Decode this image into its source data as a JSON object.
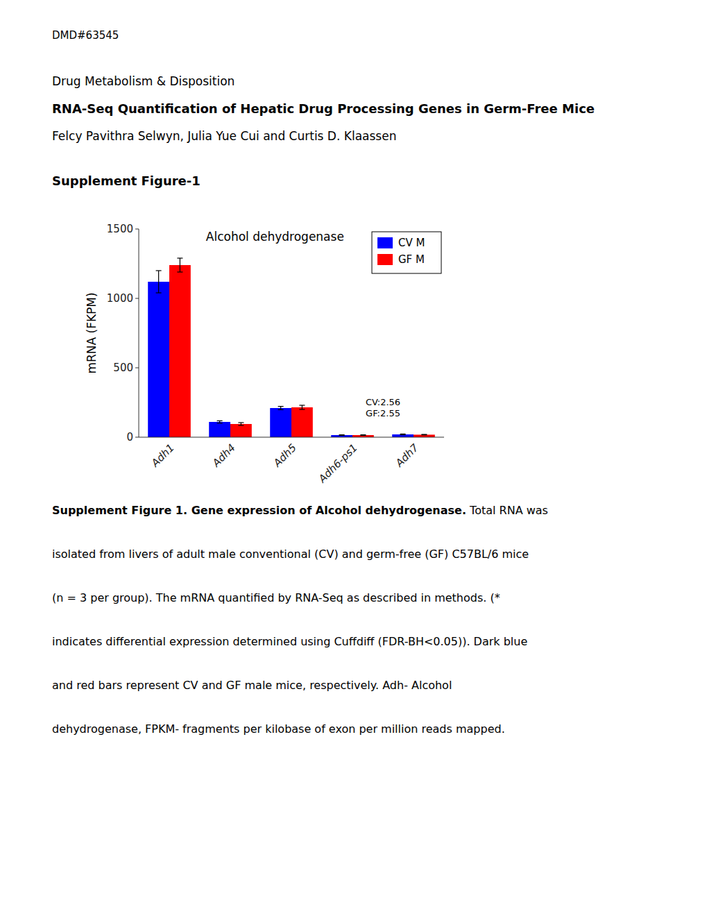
{
  "page": {
    "dmd_label": "DMD#63545",
    "journal_title": "Drug Metabolism & Disposition",
    "paper_title": "RNA-Seq Quantification of Hepatic Drug Processing Genes in Germ-Free Mice",
    "authors": "Felcy Pavithra Selwyn, Julia Yue Cui and Curtis D. Klaassen",
    "supplement_label": "Supplement Figure-1",
    "caption_bold": "Supplement Figure 1. Gene expression of Alcohol dehydrogenase.",
    "caption_lines": [
      "Supplement Figure 1. Gene expression of Alcohol dehydrogenase. Total RNA was",
      "isolated from livers of adult male conventional (CV) and germ-free (GF) C57BL/6 mice",
      "(n = 3 per group). The mRNA quantified by RNA-Seq as described in methods. (*",
      "indicates differential expression determined using Cuffdiff (FDR-BH<0.05)). Dark blue",
      "and red bars represent CV and GF male mice, respectively.   Adh- Alcohol",
      "dehydrogenase, FPKM- fragments per kilobase of exon per million reads mapped."
    ]
  },
  "chart_data": {
    "type": "bar",
    "title": "Alcohol dehydrogenase",
    "ylabel": "mRNA (FKPM)",
    "categories": [
      "Adh1",
      "Adh4",
      "Adh5",
      "Adh6-ps1",
      "Adh7"
    ],
    "series": [
      {
        "name": "CV M",
        "color": "#0000FF",
        "values": [
          1120,
          110,
          210,
          15,
          20
        ],
        "errors": [
          80,
          8,
          12,
          2,
          3
        ]
      },
      {
        "name": "GF M",
        "color": "#FF0000",
        "values": [
          1240,
          95,
          215,
          15,
          18
        ],
        "errors": [
          50,
          10,
          15,
          2,
          2
        ]
      }
    ],
    "ylim": [
      0,
      1500
    ],
    "yticks": [
      0,
      500,
      1000,
      1500
    ],
    "grid": false,
    "legend": "upper right",
    "annotation": "CV:2.56\nGF:2.55"
  }
}
